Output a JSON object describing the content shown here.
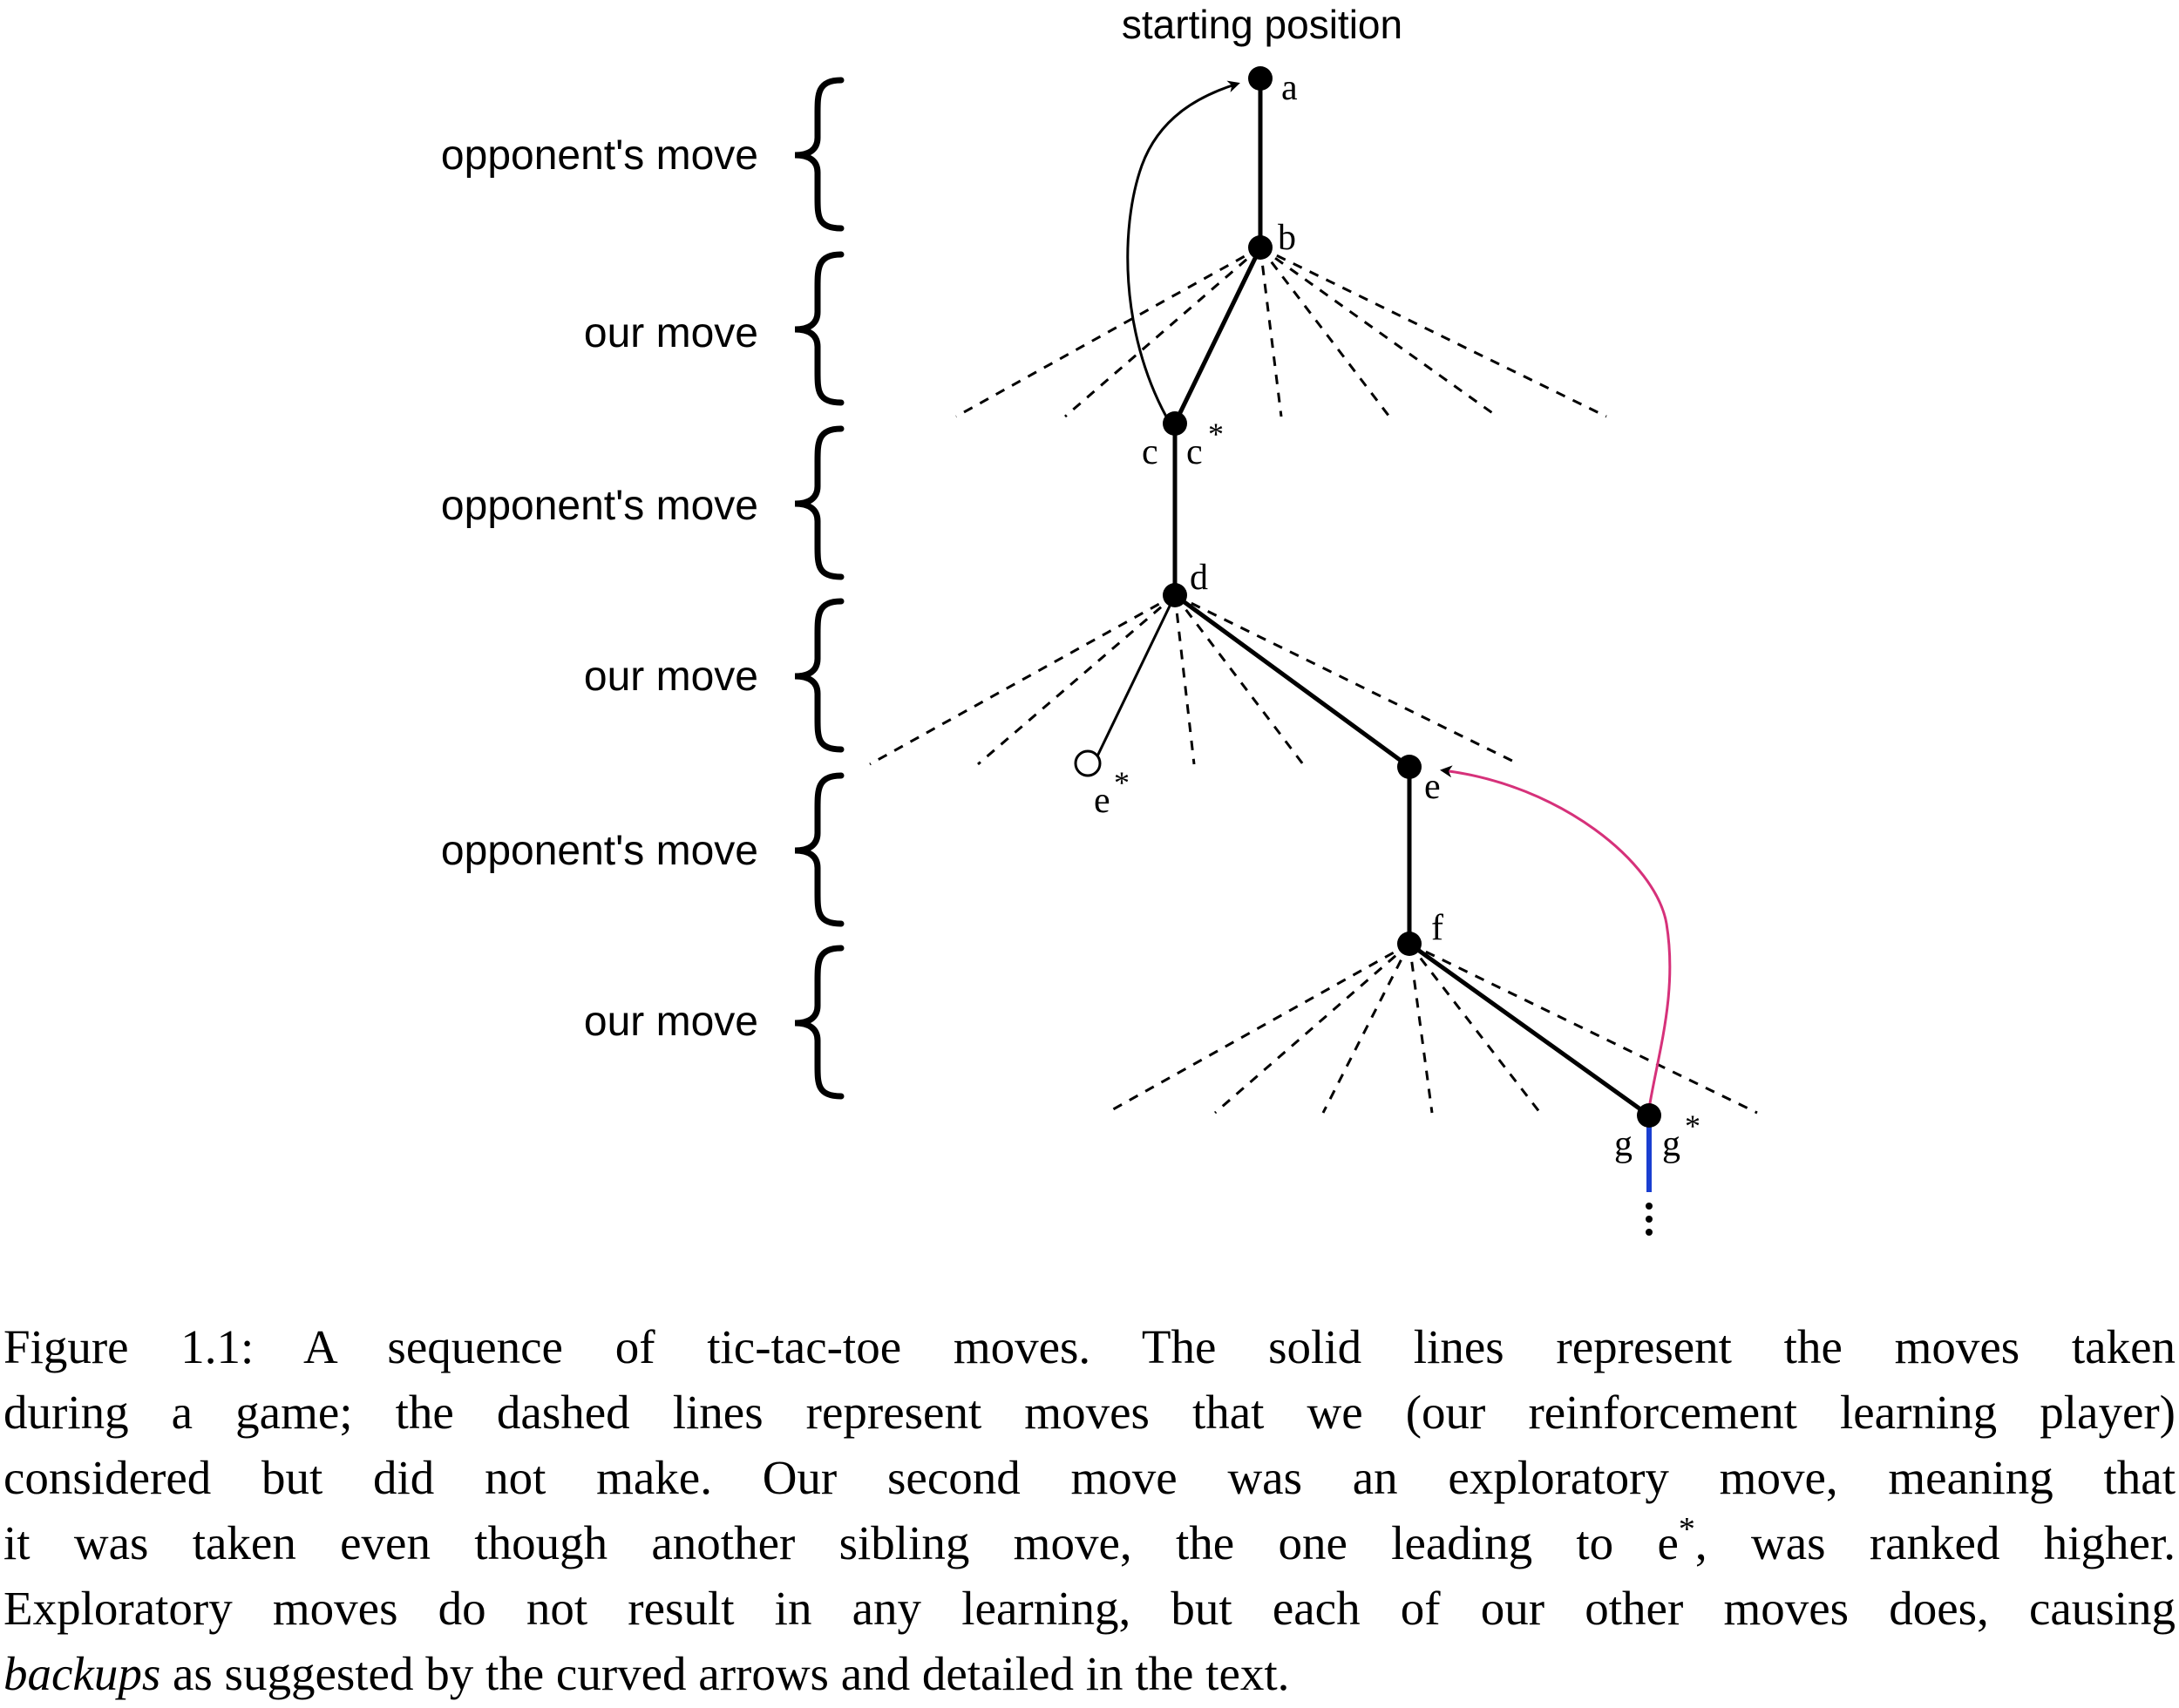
{
  "header_label": "starting position",
  "rows": [
    {
      "label": "opponent's move"
    },
    {
      "label": "our move"
    },
    {
      "label": "opponent's move"
    },
    {
      "label": "our move"
    },
    {
      "label": "opponent's move"
    },
    {
      "label": "our move"
    }
  ],
  "nodes": [
    {
      "id": "a",
      "label": "a",
      "filled": true
    },
    {
      "id": "b",
      "label": "b",
      "filled": true
    },
    {
      "id": "c",
      "label": "c",
      "label2": "c",
      "label2_sup": "*",
      "filled": true
    },
    {
      "id": "d",
      "label": "d",
      "filled": true
    },
    {
      "id": "e_star",
      "label": "e",
      "label_sup": "*",
      "filled": false
    },
    {
      "id": "e",
      "label": "e",
      "filled": true
    },
    {
      "id": "f",
      "label": "f",
      "filled": true
    },
    {
      "id": "g",
      "label": "g",
      "label2": "g",
      "label2_sup": "*",
      "filled": true
    }
  ],
  "edges": [
    {
      "from": "a",
      "to": "b",
      "style": "solid"
    },
    {
      "from": "b",
      "to": "c",
      "style": "solid"
    },
    {
      "from": "c",
      "to": "d",
      "style": "solid"
    },
    {
      "from": "d",
      "to": "e",
      "style": "solid"
    },
    {
      "from": "d",
      "to": "e_star",
      "style": "thin"
    },
    {
      "from": "e",
      "to": "f",
      "style": "solid"
    },
    {
      "from": "f",
      "to": "g",
      "style": "solid"
    },
    {
      "from": "g",
      "to": "continuation",
      "style": "solid-blue"
    }
  ],
  "backup_arrows": [
    {
      "from": "c",
      "to": "a",
      "color": "#000000"
    },
    {
      "from": "g",
      "to": "e",
      "color": "#d6317a"
    }
  ],
  "colors": {
    "ink": "#000000",
    "backup_highlight": "#d6317a",
    "continuation": "#1a3fd1"
  },
  "continuation_symbol": "⋮",
  "caption": {
    "lines": [
      [
        {
          "t": "Figure 1.1:  A sequence of tic-tac-toe moves.  The solid lines represent the moves taken"
        }
      ],
      [
        {
          "t": "during a game; the dashed lines represent moves that we (our reinforcement learning player)"
        }
      ],
      [
        {
          "t": "considered but did not make.  Our second move was an exploratory move, meaning that"
        }
      ],
      [
        {
          "t": "it was taken even though another sibling move, the one leading to e"
        },
        {
          "t": "*",
          "sup": true
        },
        {
          "t": ", was ranked higher."
        }
      ],
      [
        {
          "t": "Exploratory moves do not result in any learning, but each of our other moves does, causing"
        }
      ],
      [
        {
          "t": "backups",
          "em": true
        },
        {
          "t": " as suggested by the curved arrows and detailed in the text."
        }
      ]
    ]
  }
}
